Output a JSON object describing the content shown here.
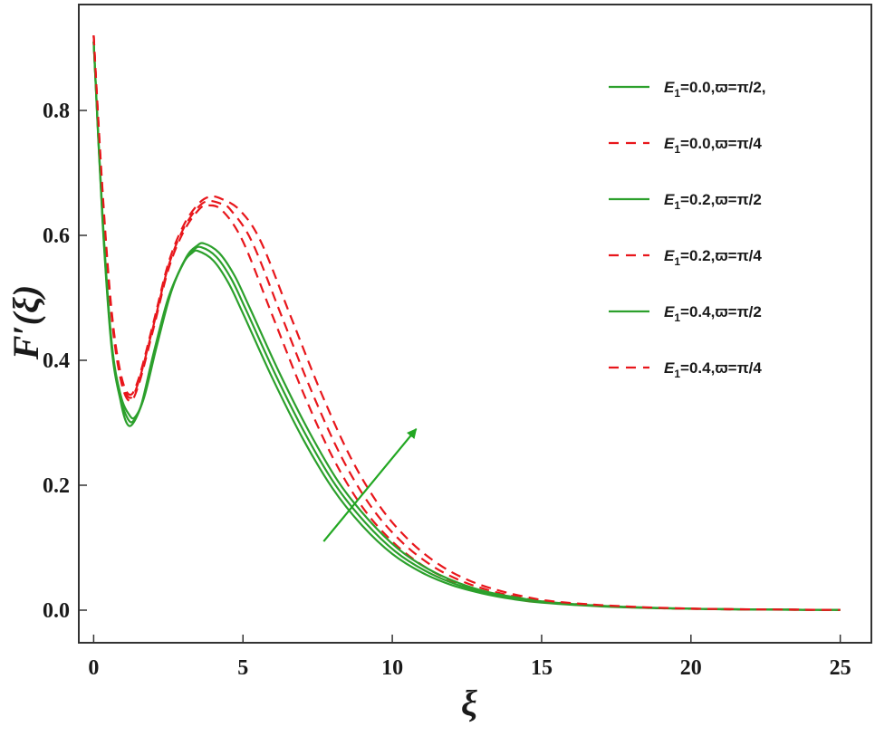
{
  "chart_data": {
    "type": "line",
    "xlabel": "ξ",
    "ylabel": "F′(ξ)",
    "xlim": [
      -1,
      25.5
    ],
    "ylim": [
      -0.05,
      0.97
    ],
    "x_ticks": [
      "0",
      "5",
      "10",
      "15",
      "20",
      "25"
    ],
    "x_tick_values": [
      0,
      5,
      10,
      15,
      20,
      25
    ],
    "y_ticks": [
      "0.0",
      "0.2",
      "0.4",
      "0.6",
      "0.8"
    ],
    "y_tick_values": [
      0.0,
      0.2,
      0.4,
      0.6,
      0.8
    ],
    "grid": false,
    "legend_position": "top-right",
    "colors": {
      "solid": "#2ca02c",
      "dashed": "#e8161b",
      "frame": "#333333",
      "arrow": "#22a722"
    },
    "annotation": {
      "type": "arrow",
      "from": [
        7.7,
        0.11
      ],
      "to": [
        10.8,
        0.29
      ]
    },
    "series": [
      {
        "name": "E1=0.0,ϖ=π/2,",
        "legend": {
          "main": "E",
          "sub": "1",
          "rest": "=0.0,ϖ=π/2,"
        },
        "style": "solid",
        "x": [
          0,
          0.3,
          0.6,
          0.9,
          1.1,
          1.3,
          1.6,
          2,
          2.5,
          3,
          3.3,
          3.5,
          4,
          4.5,
          5,
          6,
          7,
          8,
          9,
          10,
          11,
          12,
          13,
          14,
          15,
          17,
          19,
          21,
          23,
          25
        ],
        "values": [
          0.91,
          0.62,
          0.42,
          0.335,
          0.3,
          0.298,
          0.33,
          0.41,
          0.5,
          0.555,
          0.572,
          0.575,
          0.56,
          0.525,
          0.475,
          0.37,
          0.275,
          0.195,
          0.135,
          0.09,
          0.06,
          0.04,
          0.027,
          0.018,
          0.012,
          0.006,
          0.003,
          0.0015,
          0.0007,
          0.0004
        ]
      },
      {
        "name": "E1=0.0,ϖ=π/4",
        "legend": {
          "main": "E",
          "sub": "1",
          "rest": "=0.0,ϖ=π/4"
        },
        "style": "dashed",
        "x": [
          0,
          0.3,
          0.6,
          0.9,
          1.2,
          1.5,
          2,
          2.5,
          3,
          3.5,
          3.8,
          4.3,
          5,
          6,
          7,
          8,
          9,
          10,
          11,
          12,
          13,
          14,
          15,
          17,
          19,
          21,
          23,
          25
        ],
        "values": [
          0.92,
          0.66,
          0.47,
          0.37,
          0.335,
          0.36,
          0.45,
          0.545,
          0.605,
          0.64,
          0.648,
          0.64,
          0.59,
          0.47,
          0.35,
          0.245,
          0.165,
          0.11,
          0.072,
          0.047,
          0.031,
          0.02,
          0.013,
          0.0065,
          0.003,
          0.0015,
          0.0008,
          0.0004
        ]
      },
      {
        "name": "E1=0.2,ϖ=π/2",
        "legend": {
          "main": "E",
          "sub": "1",
          "rest": "=0.2,ϖ=π/2"
        },
        "style": "solid",
        "x": [
          0,
          0.3,
          0.6,
          0.9,
          1.15,
          1.35,
          1.65,
          2.05,
          2.55,
          3.05,
          3.35,
          3.6,
          4.1,
          4.6,
          5.1,
          6.1,
          7.1,
          8.1,
          9.1,
          10.1,
          11.1,
          12.1,
          13.1,
          14.1,
          15.1,
          17.1,
          19.1,
          21.1,
          23.1,
          25
        ],
        "values": [
          0.91,
          0.625,
          0.425,
          0.34,
          0.306,
          0.304,
          0.336,
          0.415,
          0.505,
          0.56,
          0.577,
          0.581,
          0.566,
          0.531,
          0.481,
          0.376,
          0.281,
          0.2,
          0.14,
          0.094,
          0.063,
          0.042,
          0.028,
          0.019,
          0.0125,
          0.0062,
          0.0031,
          0.0016,
          0.0008,
          0.0004
        ]
      },
      {
        "name": "E1=0.2,ϖ=π/4",
        "legend": {
          "main": "E",
          "sub": "1",
          "rest": "=0.2,ϖ=π/4"
        },
        "style": "dashed",
        "x": [
          0,
          0.3,
          0.6,
          0.9,
          1.2,
          1.5,
          2,
          2.5,
          3,
          3.5,
          3.85,
          4.3,
          4.6,
          5.3,
          6.3,
          7.3,
          8.3,
          9.3,
          10.3,
          11.3,
          12.3,
          13.3,
          14.3,
          15.3,
          17.3,
          19.3,
          21.3,
          23.3,
          25
        ],
        "values": [
          0.92,
          0.665,
          0.475,
          0.375,
          0.34,
          0.365,
          0.455,
          0.55,
          0.61,
          0.645,
          0.655,
          0.65,
          0.64,
          0.59,
          0.47,
          0.35,
          0.245,
          0.165,
          0.11,
          0.072,
          0.047,
          0.031,
          0.02,
          0.013,
          0.0065,
          0.003,
          0.0015,
          0.0008,
          0.0004
        ]
      },
      {
        "name": "E1=0.4,ϖ=π/2",
        "legend": {
          "main": "E",
          "sub": "1",
          "rest": "=0.4,ϖ=π/2"
        },
        "style": "solid",
        "x": [
          0,
          0.3,
          0.6,
          0.9,
          1.2,
          1.4,
          1.7,
          2.1,
          2.6,
          3.1,
          3.45,
          3.7,
          4.2,
          4.7,
          5.2,
          6.2,
          7.2,
          8.2,
          9.2,
          10.2,
          11.2,
          12.2,
          13.2,
          14.2,
          15.2,
          17.2,
          19.2,
          21.2,
          23.2,
          25
        ],
        "values": [
          0.91,
          0.63,
          0.43,
          0.345,
          0.312,
          0.31,
          0.342,
          0.42,
          0.51,
          0.565,
          0.583,
          0.587,
          0.572,
          0.537,
          0.487,
          0.382,
          0.287,
          0.205,
          0.145,
          0.098,
          0.066,
          0.044,
          0.029,
          0.02,
          0.013,
          0.0065,
          0.0032,
          0.0016,
          0.0008,
          0.0004
        ]
      },
      {
        "name": "E1=0.4,ϖ=π/4",
        "legend": {
          "main": "E",
          "sub": "1",
          "rest": "=0.4,ϖ=π/4"
        },
        "style": "dashed",
        "x": [
          0,
          0.3,
          0.6,
          0.9,
          1.2,
          1.5,
          2,
          2.5,
          3,
          3.5,
          3.9,
          4.3,
          4.9,
          5.6,
          6.6,
          7.6,
          8.6,
          9.6,
          10.6,
          11.6,
          12.6,
          13.6,
          14.6,
          15.6,
          17.6,
          19.6,
          21.6,
          23.6,
          25
        ],
        "values": [
          0.92,
          0.67,
          0.48,
          0.38,
          0.345,
          0.37,
          0.46,
          0.555,
          0.615,
          0.65,
          0.662,
          0.658,
          0.64,
          0.59,
          0.47,
          0.35,
          0.245,
          0.165,
          0.11,
          0.072,
          0.047,
          0.031,
          0.02,
          0.013,
          0.0065,
          0.003,
          0.0015,
          0.0008,
          0.0004
        ]
      }
    ]
  }
}
